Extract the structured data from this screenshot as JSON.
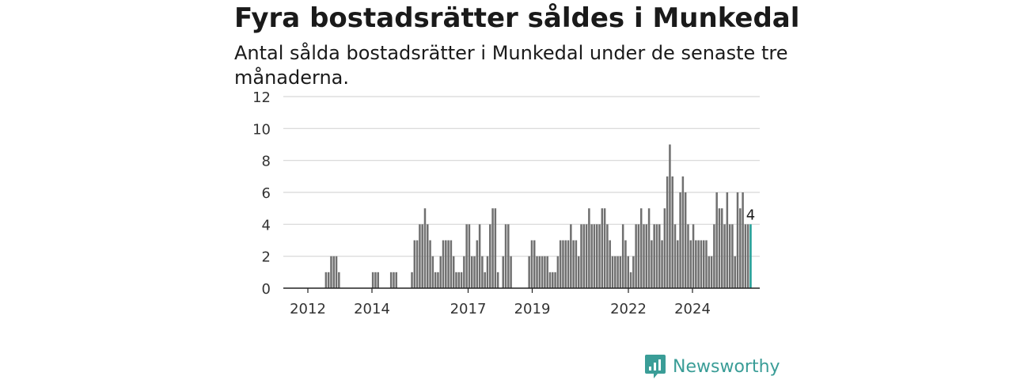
{
  "chart_data": {
    "type": "bar",
    "title": "Fyra bostadsrätter såldes i Munkedal",
    "subtitle": "Antal sålda bostadsrätter i Munkedal under de senaste tre månaderna.",
    "ylim": [
      0,
      12
    ],
    "yticks": [
      0,
      2,
      4,
      6,
      8,
      10,
      12
    ],
    "xticks": [
      "2012",
      "2014",
      "2017",
      "2019",
      "2022",
      "2024"
    ],
    "grid": true,
    "values": [
      0,
      0,
      0,
      0,
      0,
      0,
      0,
      0,
      0,
      1,
      1,
      2,
      2,
      2,
      1,
      0,
      0,
      0,
      0,
      0,
      0,
      0,
      0,
      0,
      0,
      0,
      0,
      1,
      1,
      1,
      0,
      0,
      0,
      0,
      1,
      1,
      1,
      0,
      0,
      0,
      0,
      0,
      1,
      3,
      3,
      4,
      4,
      5,
      4,
      3,
      2,
      1,
      1,
      2,
      3,
      3,
      3,
      3,
      2,
      1,
      1,
      1,
      2,
      4,
      4,
      2,
      2,
      3,
      4,
      2,
      1,
      2,
      4,
      5,
      5,
      1,
      0,
      2,
      4,
      4,
      2,
      0,
      0,
      0,
      0,
      0,
      0,
      2,
      3,
      3,
      2,
      2,
      2,
      2,
      2,
      1,
      1,
      1,
      2,
      3,
      3,
      3,
      3,
      4,
      3,
      3,
      2,
      4,
      4,
      4,
      5,
      4,
      4,
      4,
      4,
      5,
      5,
      4,
      3,
      2,
      2,
      2,
      2,
      4,
      3,
      2,
      1,
      2,
      4,
      4,
      5,
      4,
      4,
      5,
      3,
      4,
      4,
      4,
      3,
      5,
      7,
      9,
      7,
      4,
      3,
      6,
      7,
      6,
      4,
      3,
      4,
      3,
      3,
      3,
      3,
      3,
      2,
      2,
      4,
      6,
      5,
      5,
      4,
      6,
      4,
      4,
      2,
      6,
      5,
      6,
      4,
      4,
      4
    ],
    "highlight_last": true,
    "last_value_label": "4",
    "bar_color": "#707070",
    "highlight_color": "#1f9d95"
  },
  "brand": {
    "name": "Newsworthy",
    "color": "#3a9d97"
  }
}
